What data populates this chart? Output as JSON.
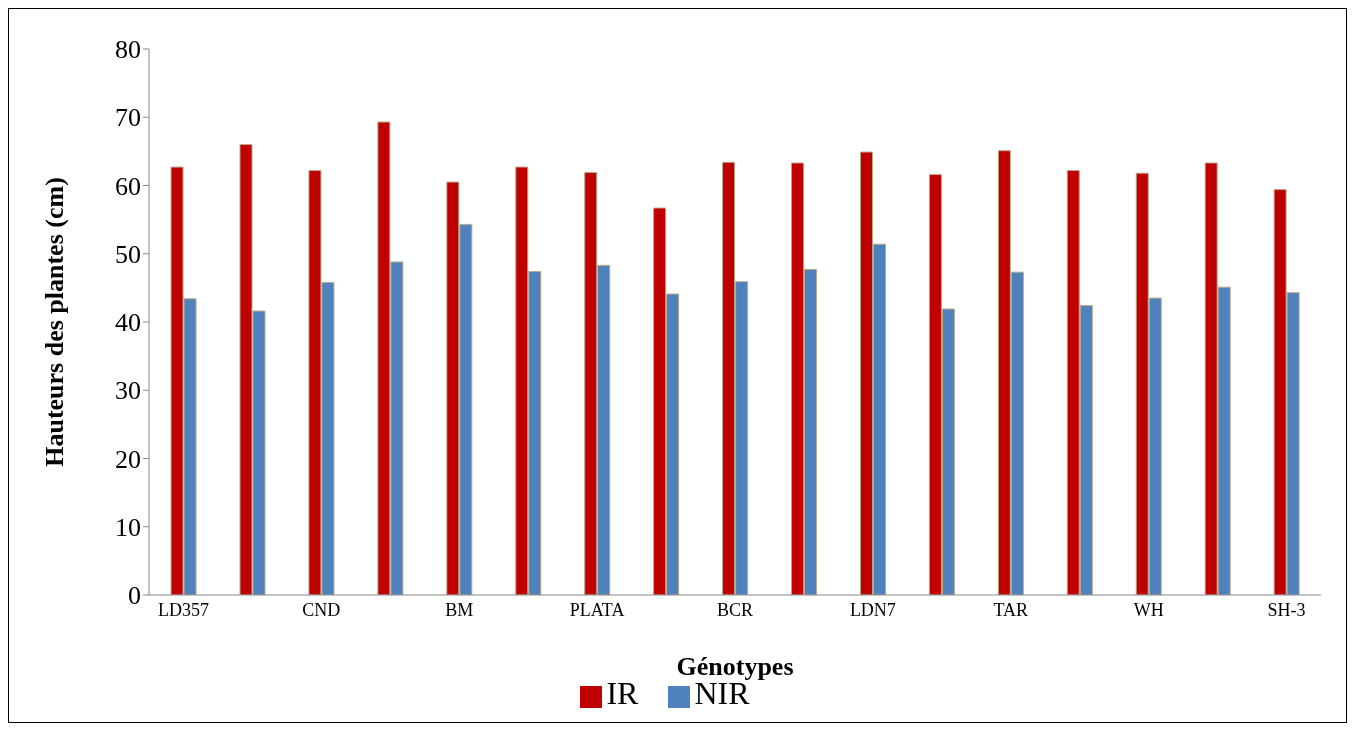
{
  "chart_data": {
    "type": "bar",
    "xlabel": "Génotypes",
    "ylabel": "Hauteurs des plantes (cm)",
    "categories": [
      "LD357",
      null,
      "CND",
      null,
      "BM",
      null,
      "PLATA",
      null,
      "BCR",
      null,
      "LDN7",
      null,
      "TAR",
      null,
      "WH",
      null,
      "SH-3"
    ],
    "series": [
      {
        "name": "IR",
        "color": "#c00000",
        "values": [
          62.7,
          66,
          62.2,
          69.3,
          60.5,
          62.7,
          61.9,
          56.7,
          63.4,
          63.3,
          64.9,
          61.6,
          65.1,
          62.2,
          61.8,
          63.3,
          59.4
        ]
      },
      {
        "name": "NIR",
        "color": "#4f81bd",
        "values": [
          43.4,
          41.6,
          45.8,
          48.8,
          54.3,
          47.4,
          48.3,
          44.1,
          45.9,
          47.7,
          51.4,
          41.9,
          47.3,
          42.4,
          43.5,
          45.1,
          44.3
        ]
      }
    ],
    "ylim": [
      0,
      80
    ],
    "yticks": [
      0,
      10,
      20,
      30,
      40,
      50,
      60,
      70,
      80
    ],
    "grid": false,
    "legend": "bottom"
  }
}
